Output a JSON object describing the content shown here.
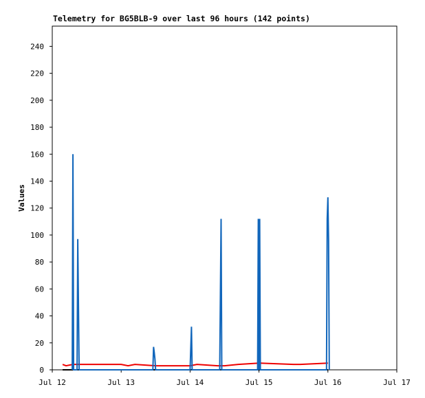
{
  "chart_data": {
    "type": "line",
    "title": "Telemetry for BG5BLB-9 over last 96 hours (142 points)",
    "y_label": "Values",
    "xlim": [
      12,
      17
    ],
    "ylim": [
      0,
      255
    ],
    "xticks": [
      {
        "value": 12,
        "label": "Jul 12"
      },
      {
        "value": 13,
        "label": "Jul 13"
      },
      {
        "value": 14,
        "label": "Jul 14"
      },
      {
        "value": 15,
        "label": "Jul 15"
      },
      {
        "value": 16,
        "label": "Jul 16"
      },
      {
        "value": 17,
        "label": "Jul 17"
      }
    ],
    "yticks": [
      0,
      20,
      40,
      60,
      80,
      100,
      120,
      140,
      160,
      180,
      200,
      220,
      240
    ],
    "series": [
      {
        "color": "#000000",
        "x": [
          12.15,
          16.0
        ],
        "values": [
          0,
          0
        ]
      },
      {
        "color": "#ee0000",
        "x": [
          12.15,
          12.2,
          12.3,
          12.5,
          13.0,
          13.1,
          13.2,
          13.5,
          14.0,
          14.1,
          14.4,
          14.5,
          14.7,
          15.0,
          15.5,
          15.6,
          16.0
        ],
        "values": [
          4,
          3,
          4,
          4,
          4,
          3,
          4,
          3,
          3,
          4,
          3,
          3,
          4,
          5,
          4,
          4,
          5
        ]
      },
      {
        "color": "#1166bb",
        "x": [
          12.29,
          12.3,
          12.31,
          12.36,
          12.37,
          12.38,
          12.39,
          13.46,
          13.47,
          13.48,
          13.49,
          13.5,
          14.0,
          14.01,
          14.02,
          14.03,
          14.43,
          14.44,
          14.45,
          14.46,
          14.98,
          14.99,
          15.0,
          15.01,
          15.02,
          15.98,
          15.99,
          16.0,
          16.01,
          16.02
        ],
        "values": [
          0,
          160,
          0,
          0,
          97,
          48,
          0,
          0,
          17,
          13,
          8,
          0,
          0,
          16,
          32,
          0,
          0,
          56,
          112,
          0,
          0,
          112,
          0,
          112,
          0,
          0,
          112,
          128,
          96,
          0
        ]
      }
    ]
  }
}
